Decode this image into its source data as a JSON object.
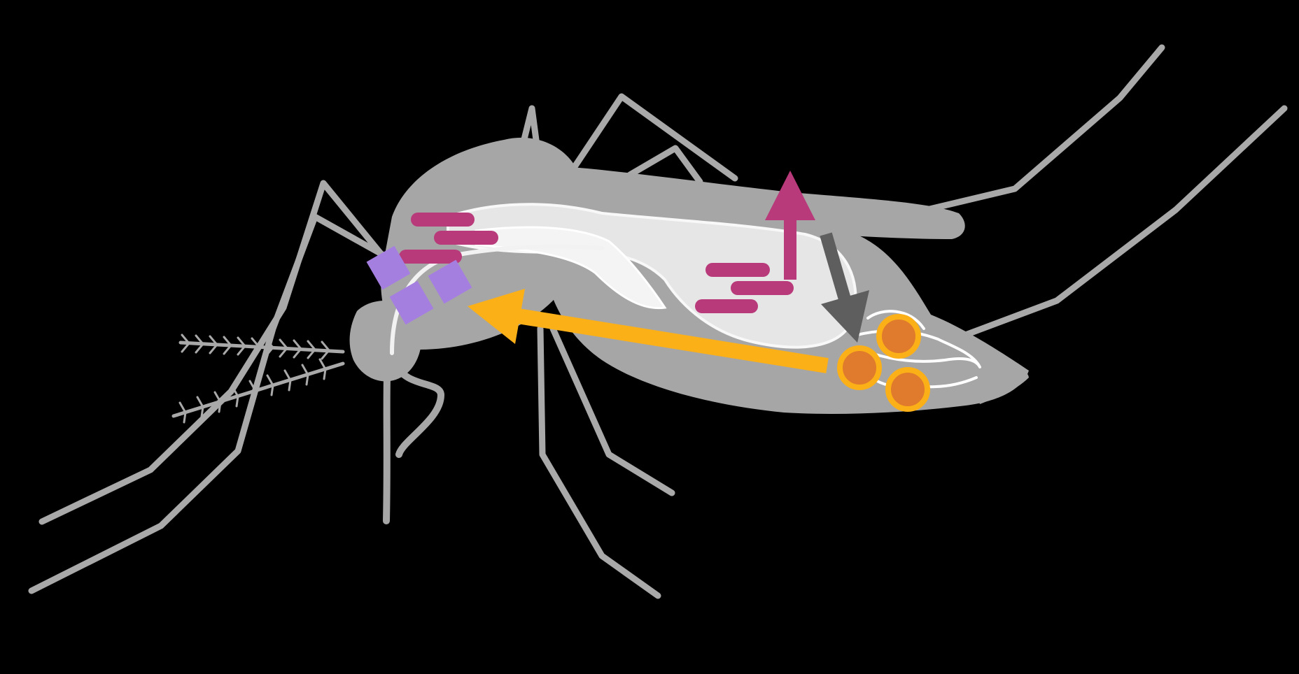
{
  "diagram": {
    "subject": "mosquito-anatomy",
    "colors": {
      "background": "#000000",
      "body": "#a6a6a6",
      "legs": "#a9a9a9",
      "organs": "#e6e6e6",
      "organ_highlight": "#f4f4f4",
      "magenta": "#b83a7a",
      "lavender": "#a57fe0",
      "orange_arrow": "#fbb018",
      "egg_fill": "#e07a2c",
      "egg_ring": "#fbb018",
      "dark_arrow": "#5e5e5e"
    },
    "icons": {
      "up_arrow": "arrow-up-icon",
      "down_arrow": "arrow-down-icon",
      "left_arrow": "arrow-left-icon"
    },
    "elements": {
      "magenta_bars_thorax": 3,
      "magenta_bars_abdomen": 3,
      "lavender_squares": 3,
      "eggs": 3
    }
  }
}
